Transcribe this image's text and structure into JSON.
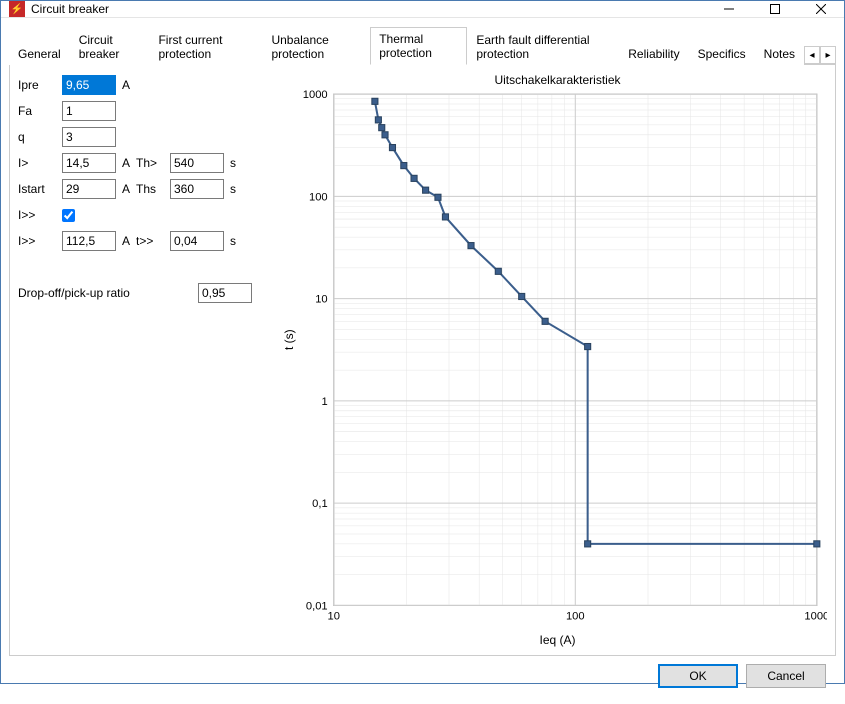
{
  "window": {
    "title": "Circuit breaker",
    "icon_bg": "#c62828"
  },
  "tabs": {
    "items": [
      {
        "label": "General"
      },
      {
        "label": "Circuit breaker"
      },
      {
        "label": "First current protection"
      },
      {
        "label": "Unbalance protection"
      },
      {
        "label": "Thermal protection"
      },
      {
        "label": "Earth fault differential protection"
      },
      {
        "label": "Reliability"
      },
      {
        "label": "Specifics"
      },
      {
        "label": "Notes"
      }
    ],
    "active_index": 4
  },
  "form": {
    "Ipre": {
      "label": "Ipre",
      "value": "9,65",
      "unit": "A",
      "selected": true
    },
    "Fa": {
      "label": "Fa",
      "value": "1",
      "unit": ""
    },
    "q": {
      "label": "q",
      "value": "3",
      "unit": ""
    },
    "Igt": {
      "label": "I>",
      "value": "14,5",
      "unit": "A"
    },
    "Istart": {
      "label": "Istart",
      "value": "29",
      "unit": "A"
    },
    "Idd_chk": {
      "label": "I>>",
      "checked": true
    },
    "Idd": {
      "label": "I>>",
      "value": "112,5",
      "unit": "A"
    },
    "Th": {
      "label": "Th>",
      "value": "540",
      "unit": "s"
    },
    "Ths": {
      "label": "Ths",
      "value": "360",
      "unit": "s"
    },
    "tdd": {
      "label": "t>>",
      "value": "0,04",
      "unit": "s"
    },
    "dropoff": {
      "label": "Drop-off/pick-up ratio",
      "value": "0,95"
    }
  },
  "chart": {
    "title": "Uitschakelkarakteristiek",
    "xlabel": "Ieq (A)",
    "ylabel": "t (s)",
    "xlim": [
      10,
      1000
    ],
    "ylim": [
      0.01,
      1000
    ],
    "xticks": [
      10,
      100,
      1000
    ],
    "yticks": [
      0.01,
      0.1,
      1,
      10,
      100,
      1000
    ],
    "ytick_labels": [
      "0,01",
      "0,1",
      "1",
      "10",
      "100",
      "1000"
    ],
    "xtick_labels": [
      "10",
      "100",
      "1000"
    ],
    "grid_color": "#cccccc",
    "grid_minor_color": "#e5e5e5",
    "line_color": "#3b5e8c",
    "marker_fill": "#3b5e8c",
    "marker_border": "#2a435f",
    "marker_size": 6,
    "line_width": 2,
    "background": "#ffffff",
    "data": [
      {
        "x": 14.8,
        "y": 850
      },
      {
        "x": 15.3,
        "y": 560
      },
      {
        "x": 15.8,
        "y": 470
      },
      {
        "x": 16.3,
        "y": 400
      },
      {
        "x": 17.5,
        "y": 300
      },
      {
        "x": 19.5,
        "y": 200
      },
      {
        "x": 21.5,
        "y": 150
      },
      {
        "x": 24.0,
        "y": 115
      },
      {
        "x": 27.0,
        "y": 98
      },
      {
        "x": 29.0,
        "y": 63
      },
      {
        "x": 37.0,
        "y": 33
      },
      {
        "x": 48.0,
        "y": 18.5
      },
      {
        "x": 60.0,
        "y": 10.5
      },
      {
        "x": 75.0,
        "y": 6.0
      },
      {
        "x": 112.5,
        "y": 3.4
      },
      {
        "x": 112.5,
        "y": 0.04
      },
      {
        "x": 1000,
        "y": 0.04
      }
    ]
  },
  "buttons": {
    "ok": "OK",
    "cancel": "Cancel"
  }
}
